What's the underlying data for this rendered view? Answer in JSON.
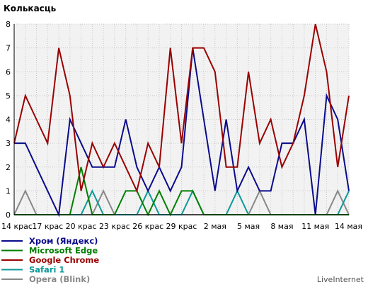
{
  "chart_data": {
    "type": "line",
    "title": "Колькасць",
    "xlabel": "",
    "ylabel": "",
    "ylim": [
      0,
      8
    ],
    "yticks": [
      0,
      1,
      2,
      3,
      4,
      5,
      6,
      7,
      8
    ],
    "grid": true,
    "legend_position": "bottom-left",
    "x_tick_labels": [
      "14 крас",
      "17 крас",
      "20 крас",
      "23 крас",
      "26 крас",
      "29 крас",
      "2 мая",
      "5 мая",
      "8 мая",
      "11 мая",
      "14 мая"
    ],
    "series": [
      {
        "name": "Хром (Яндекс)",
        "color": "#0a0a8c",
        "values": [
          3,
          3,
          2,
          1,
          0,
          4,
          3,
          2,
          2,
          2,
          4,
          2,
          1,
          2,
          1,
          2,
          7,
          4,
          1,
          4,
          1,
          2,
          1,
          1,
          3,
          3,
          4,
          0,
          5,
          4,
          1
        ]
      },
      {
        "name": "Microsoft Edge",
        "color": "#008000",
        "values": [
          0,
          0,
          0,
          0,
          0,
          0,
          2,
          0,
          0,
          0,
          1,
          1,
          0,
          1,
          0,
          1,
          1,
          0,
          0,
          0,
          0,
          0,
          0,
          0,
          0,
          0,
          0,
          0,
          0,
          0,
          0
        ]
      },
      {
        "name": "Google Chrome",
        "color": "#990000",
        "values": [
          3,
          5,
          4,
          3,
          7,
          5,
          1,
          3,
          2,
          3,
          2,
          1,
          3,
          2,
          7,
          3,
          7,
          7,
          6,
          2,
          2,
          6,
          3,
          4,
          2,
          3,
          5,
          8,
          6,
          2,
          5
        ]
      },
      {
        "name": "Safari 1",
        "color": "#0e9999",
        "values": [
          0,
          0,
          0,
          0,
          0,
          0,
          0,
          1,
          0,
          0,
          0,
          0,
          1,
          0,
          0,
          0,
          1,
          0,
          0,
          0,
          1,
          0,
          0,
          0,
          0,
          0,
          0,
          0,
          0,
          0,
          1
        ]
      },
      {
        "name": "Opera (Blink)",
        "color": "#888888",
        "values": [
          0,
          1,
          0,
          0,
          0,
          0,
          0,
          0,
          1,
          0,
          0,
          0,
          0,
          0,
          0,
          0,
          0,
          0,
          0,
          0,
          0,
          0,
          1,
          0,
          0,
          0,
          0,
          0,
          0,
          1,
          0
        ]
      }
    ]
  },
  "footer": {
    "credit": "LiveInternet"
  }
}
